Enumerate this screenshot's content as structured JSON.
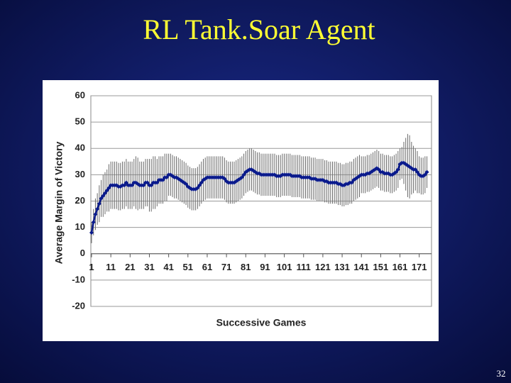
{
  "chart_data": {
    "type": "line",
    "title": "RL Tank.Soar Agent",
    "x_label": "Successive Games",
    "y_label": "Average Margin of Victory",
    "color": "#0a1a8c",
    "error_color": "#6a6a6a",
    "grid": true,
    "xlim": [
      1,
      177
    ],
    "xticks": [
      1,
      11,
      21,
      31,
      41,
      51,
      61,
      71,
      81,
      91,
      101,
      111,
      121,
      131,
      141,
      151,
      161,
      171
    ],
    "ylim": [
      -20,
      60
    ],
    "yticks": [
      -20,
      -10,
      0,
      10,
      20,
      30,
      40,
      50,
      60
    ],
    "x": [
      1,
      2,
      3,
      4,
      5,
      6,
      7,
      8,
      9,
      10,
      11,
      12,
      13,
      14,
      15,
      16,
      17,
      18,
      19,
      20,
      21,
      22,
      23,
      24,
      25,
      26,
      27,
      28,
      29,
      30,
      31,
      32,
      33,
      34,
      35,
      36,
      37,
      38,
      39,
      40,
      41,
      42,
      43,
      44,
      45,
      46,
      47,
      48,
      49,
      50,
      51,
      52,
      53,
      54,
      55,
      56,
      57,
      58,
      59,
      60,
      61,
      62,
      63,
      64,
      65,
      66,
      67,
      68,
      69,
      70,
      71,
      72,
      73,
      74,
      75,
      76,
      77,
      78,
      79,
      80,
      81,
      82,
      83,
      84,
      85,
      86,
      87,
      88,
      89,
      90,
      91,
      92,
      93,
      94,
      95,
      96,
      97,
      98,
      99,
      100,
      101,
      102,
      103,
      104,
      105,
      106,
      107,
      108,
      109,
      110,
      111,
      112,
      113,
      114,
      115,
      116,
      117,
      118,
      119,
      120,
      121,
      122,
      123,
      124,
      125,
      126,
      127,
      128,
      129,
      130,
      131,
      132,
      133,
      134,
      135,
      136,
      137,
      138,
      139,
      140,
      141,
      142,
      143,
      144,
      145,
      146,
      147,
      148,
      149,
      150,
      151,
      152,
      153,
      154,
      155,
      156,
      157,
      158,
      159,
      160,
      161,
      162,
      163,
      164,
      165,
      166,
      167,
      168,
      169,
      170,
      171,
      172,
      173,
      174,
      175
    ],
    "values": [
      8,
      12,
      15,
      17,
      19,
      21,
      22,
      23,
      24,
      25,
      26,
      26,
      26,
      26,
      25.5,
      25.5,
      26,
      26,
      27,
      26,
      26,
      26,
      27,
      27,
      26.5,
      26,
      26,
      26,
      27,
      27,
      26,
      26,
      27,
      27,
      27,
      28,
      28,
      28,
      29,
      29,
      30,
      30,
      29.5,
      29,
      29,
      28.5,
      28,
      27.5,
      27,
      26.5,
      25.5,
      25,
      24.5,
      24.5,
      24.5,
      25,
      26,
      27,
      28,
      28.5,
      29,
      29,
      29,
      29,
      29,
      29,
      29,
      29,
      29,
      28.5,
      27.5,
      27,
      27,
      27,
      27,
      27.5,
      28,
      28.5,
      29,
      30,
      31,
      31.5,
      32,
      32,
      31.5,
      31,
      30.5,
      30.5,
      30,
      30,
      30,
      30,
      30,
      30,
      30,
      30,
      29.5,
      29.5,
      29.5,
      30,
      30,
      30,
      30,
      30,
      29.5,
      29.5,
      29.5,
      29.5,
      29.5,
      29,
      29,
      29,
      29,
      29,
      28.5,
      28.5,
      28.5,
      28,
      28,
      28,
      28,
      27.5,
      27.5,
      27,
      27,
      27,
      27,
      27,
      26.5,
      26.5,
      26,
      26,
      26.5,
      26.5,
      27,
      27,
      28,
      28.5,
      29,
      29.5,
      30,
      30,
      30,
      30.5,
      30.5,
      31,
      31.5,
      32,
      32.5,
      32,
      31,
      31,
      30.5,
      30.5,
      30.5,
      30,
      30,
      30.5,
      31,
      32,
      34,
      34.5,
      34.5,
      34,
      33.5,
      33,
      32.5,
      32,
      32,
      31,
      30,
      29.5,
      29.5,
      30,
      31
    ],
    "errors": [
      4,
      5,
      6,
      6,
      7,
      7,
      8,
      8,
      8,
      9,
      9,
      9,
      9,
      9,
      9,
      9,
      9,
      9,
      9,
      9,
      9,
      9,
      9,
      10,
      10,
      9,
      9,
      9,
      9,
      9,
      10,
      10,
      10,
      10,
      9,
      9,
      9,
      9,
      9,
      9,
      8,
      8,
      8,
      8,
      8,
      8,
      8,
      8,
      8,
      8,
      8,
      8,
      8,
      8,
      8,
      8,
      8,
      8,
      8,
      8,
      8,
      8,
      8,
      8,
      8,
      8,
      8,
      8,
      8,
      8,
      8,
      8,
      8,
      8,
      8,
      8,
      8,
      8,
      8,
      8,
      8,
      8,
      8,
      8,
      8,
      8,
      8,
      8,
      8,
      8,
      8,
      8,
      8,
      8,
      8,
      8,
      8,
      8,
      8,
      8,
      8,
      8,
      8,
      8,
      8,
      8,
      8,
      8,
      8,
      8,
      8,
      8,
      8,
      8,
      8,
      8,
      8,
      8,
      8,
      8,
      8,
      8,
      8,
      8,
      8,
      8,
      8,
      8,
      8,
      8,
      8,
      8,
      8,
      8,
      8,
      8,
      8,
      8,
      8,
      8,
      7,
      7,
      7,
      7,
      7,
      7,
      7,
      7,
      7,
      7,
      7,
      7,
      7,
      7,
      7,
      7,
      7,
      7,
      7,
      7,
      6,
      6,
      8,
      10,
      12,
      12,
      10,
      9,
      8,
      8,
      7,
      7,
      7,
      7,
      6
    ]
  },
  "page_number": "32"
}
